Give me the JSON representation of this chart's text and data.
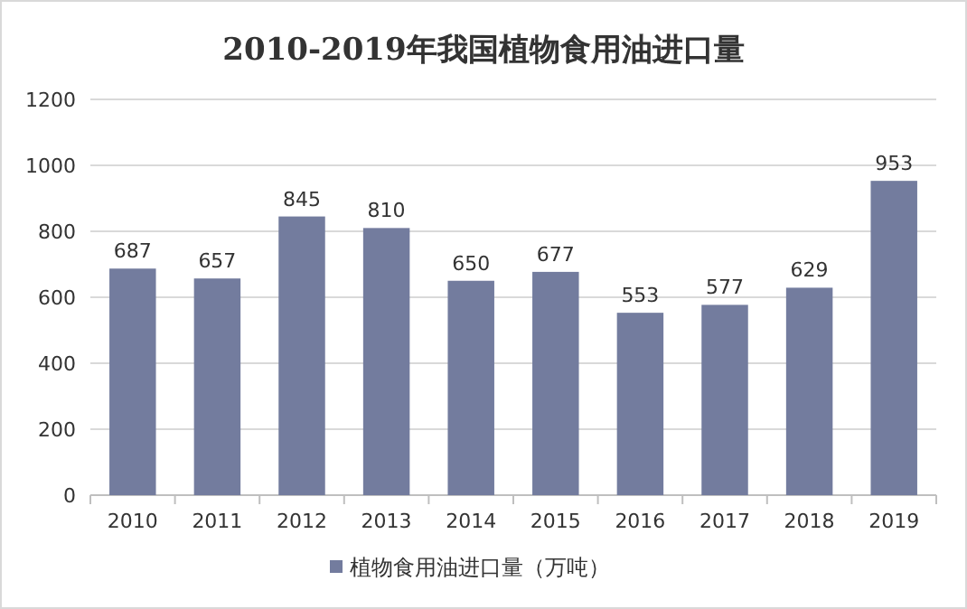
{
  "chart_data": {
    "type": "bar",
    "title": "2010-2019年我国植物食用油进口量",
    "categories": [
      "2010",
      "2011",
      "2012",
      "2013",
      "2014",
      "2015",
      "2016",
      "2017",
      "2018",
      "2019"
    ],
    "series": [
      {
        "name": "植物食用油进口量（万吨）",
        "color": "#737c9e",
        "values": [
          687,
          657,
          845,
          810,
          650,
          677,
          553,
          577,
          629,
          953
        ]
      }
    ],
    "ylim": [
      0,
      1200
    ],
    "yticks": [
      0,
      200,
      400,
      600,
      800,
      1000,
      1200
    ],
    "grid": "y",
    "legend": "bottom",
    "data_labels": true
  }
}
